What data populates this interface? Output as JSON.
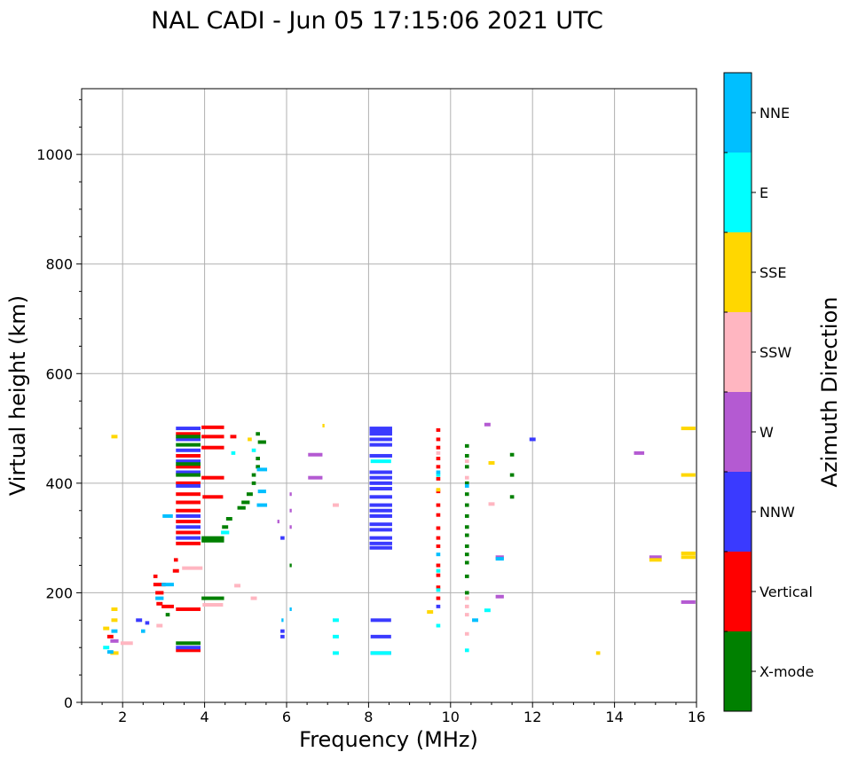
{
  "chart_data": {
    "type": "scatter",
    "title": "NAL CADI - Jun 05 17:15:06 2021 UTC",
    "xlabel": "Frequency (MHz)",
    "ylabel": "Virtual height (km)",
    "xlim": [
      1,
      16
    ],
    "ylim": [
      0,
      1120
    ],
    "xticks": [
      2,
      4,
      6,
      8,
      10,
      12,
      14,
      16
    ],
    "yticks": [
      0,
      200,
      400,
      600,
      800,
      1000
    ],
    "grid": true,
    "colorbar": {
      "label": "Azimuth Direction",
      "position": "right",
      "categories": [
        {
          "name": "X-mode",
          "color": "#008000"
        },
        {
          "name": "Vertical",
          "color": "#ff0000"
        },
        {
          "name": "NNW",
          "color": "#3a3aff"
        },
        {
          "name": "W",
          "color": "#b45ad2"
        },
        {
          "name": "SSW",
          "color": "#ffb6c1"
        },
        {
          "name": "SSE",
          "color": "#ffd700"
        },
        {
          "name": "E",
          "color": "#00ffff"
        },
        {
          "name": "NNE",
          "color": "#00bfff"
        }
      ]
    },
    "series": [
      {
        "name": "Vertical",
        "color": "#ff0000",
        "points": [
          [
            3.6,
            95,
            0.6
          ],
          [
            3.6,
            170,
            0.6
          ],
          [
            3.1,
            175,
            0.3
          ],
          [
            2.9,
            180,
            0.15
          ],
          [
            2.9,
            200,
            0.2
          ],
          [
            2.9,
            215,
            0.3
          ],
          [
            2.8,
            230,
            0.1
          ],
          [
            3.3,
            240,
            0.15
          ],
          [
            3.3,
            260,
            0.1
          ],
          [
            3.6,
            290,
            0.6
          ],
          [
            3.6,
            310,
            0.6
          ],
          [
            3.6,
            330,
            0.6
          ],
          [
            3.6,
            350,
            0.6
          ],
          [
            3.6,
            365,
            0.6
          ],
          [
            3.6,
            380,
            0.6
          ],
          [
            4.2,
            375,
            0.5
          ],
          [
            3.6,
            400,
            0.6
          ],
          [
            4.2,
            410,
            0.55
          ],
          [
            3.6,
            430,
            0.6
          ],
          [
            3.6,
            450,
            0.6
          ],
          [
            4.2,
            465,
            0.55
          ],
          [
            4.2,
            485,
            0.55
          ],
          [
            3.6,
            490,
            0.6
          ],
          [
            4.2,
            502,
            0.55
          ],
          [
            4.7,
            485,
            0.15
          ],
          [
            9.7,
            497,
            0.1
          ],
          [
            9.7,
            480,
            0.1
          ],
          [
            9.7,
            465,
            0.1
          ],
          [
            9.7,
            445,
            0.1
          ],
          [
            9.7,
            430,
            0.1
          ],
          [
            9.7,
            408,
            0.1
          ],
          [
            9.7,
            385,
            0.1
          ],
          [
            9.7,
            360,
            0.1
          ],
          [
            9.7,
            342,
            0.1
          ],
          [
            9.7,
            318,
            0.1
          ],
          [
            9.7,
            300,
            0.1
          ],
          [
            9.7,
            285,
            0.1
          ],
          [
            9.7,
            250,
            0.1
          ],
          [
            9.7,
            232,
            0.1
          ],
          [
            9.7,
            210,
            0.1
          ],
          [
            9.7,
            190,
            0.1
          ],
          [
            1.7,
            120,
            0.15
          ]
        ]
      },
      {
        "name": "NNW",
        "color": "#3a3aff",
        "points": [
          [
            3.6,
            100,
            0.6
          ],
          [
            3.6,
            300,
            0.6
          ],
          [
            3.6,
            320,
            0.6
          ],
          [
            3.6,
            340,
            0.6
          ],
          [
            3.6,
            395,
            0.6
          ],
          [
            3.6,
            420,
            0.6
          ],
          [
            3.6,
            440,
            0.6
          ],
          [
            3.6,
            460,
            0.6
          ],
          [
            3.6,
            480,
            0.6
          ],
          [
            3.6,
            500,
            0.6
          ],
          [
            8.3,
            90,
            0.5
          ],
          [
            8.3,
            120,
            0.5
          ],
          [
            8.3,
            150,
            0.5
          ],
          [
            8.3,
            282,
            0.55
          ],
          [
            8.3,
            290,
            0.55
          ],
          [
            8.3,
            300,
            0.55
          ],
          [
            8.3,
            315,
            0.55
          ],
          [
            8.3,
            325,
            0.55
          ],
          [
            8.3,
            340,
            0.55
          ],
          [
            8.3,
            350,
            0.55
          ],
          [
            8.3,
            360,
            0.55
          ],
          [
            8.3,
            375,
            0.55
          ],
          [
            8.3,
            390,
            0.55
          ],
          [
            8.3,
            400,
            0.55
          ],
          [
            8.3,
            410,
            0.55
          ],
          [
            8.3,
            420,
            0.55
          ],
          [
            8.3,
            450,
            0.55
          ],
          [
            8.3,
            470,
            0.55
          ],
          [
            8.3,
            480,
            0.55
          ],
          [
            8.3,
            490,
            0.55
          ],
          [
            8.3,
            495,
            0.55
          ],
          [
            8.3,
            500,
            0.55
          ],
          [
            5.9,
            120,
            0.1
          ],
          [
            5.9,
            130,
            0.1
          ],
          [
            5.9,
            300,
            0.1
          ],
          [
            12,
            480,
            0.15
          ],
          [
            9.7,
            175,
            0.1
          ],
          [
            2.4,
            150,
            0.15
          ],
          [
            2.6,
            145,
            0.1
          ]
        ]
      },
      {
        "name": "X-mode",
        "color": "#008000",
        "points": [
          [
            3.6,
            108,
            0.6
          ],
          [
            4.2,
            190,
            0.55
          ],
          [
            4.2,
            295,
            0.55
          ],
          [
            4.2,
            300,
            0.55
          ],
          [
            4.5,
            320,
            0.15
          ],
          [
            4.6,
            335,
            0.15
          ],
          [
            4.9,
            355,
            0.2
          ],
          [
            5.0,
            365,
            0.2
          ],
          [
            5.1,
            380,
            0.15
          ],
          [
            5.2,
            400,
            0.1
          ],
          [
            5.2,
            415,
            0.1
          ],
          [
            5.3,
            430,
            0.1
          ],
          [
            5.3,
            445,
            0.1
          ],
          [
            5.4,
            475,
            0.2
          ],
          [
            5.3,
            490,
            0.1
          ],
          [
            3.6,
            415,
            0.6
          ],
          [
            3.6,
            435,
            0.6
          ],
          [
            3.6,
            470,
            0.6
          ],
          [
            3.6,
            485,
            0.6
          ],
          [
            10.4,
            200,
            0.1
          ],
          [
            10.4,
            230,
            0.1
          ],
          [
            10.4,
            255,
            0.1
          ],
          [
            10.4,
            270,
            0.1
          ],
          [
            10.4,
            285,
            0.1
          ],
          [
            10.4,
            305,
            0.1
          ],
          [
            10.4,
            320,
            0.1
          ],
          [
            10.4,
            340,
            0.1
          ],
          [
            10.4,
            360,
            0.1
          ],
          [
            10.4,
            380,
            0.1
          ],
          [
            10.4,
            400,
            0.1
          ],
          [
            10.4,
            430,
            0.1
          ],
          [
            10.4,
            450,
            0.1
          ],
          [
            10.4,
            468,
            0.1
          ],
          [
            11.5,
            375,
            0.1
          ],
          [
            11.5,
            415,
            0.1
          ],
          [
            11.5,
            452,
            0.1
          ],
          [
            6.1,
            250,
            0.05
          ],
          [
            3.1,
            160,
            0.1
          ]
        ]
      },
      {
        "name": "W",
        "color": "#b45ad2",
        "points": [
          [
            6.7,
            410,
            0.35
          ],
          [
            6.7,
            452,
            0.35
          ],
          [
            14.6,
            455,
            0.25
          ],
          [
            15,
            265,
            0.3
          ],
          [
            15.8,
            183,
            0.35
          ],
          [
            10.9,
            507,
            0.15
          ],
          [
            11.2,
            265,
            0.2
          ],
          [
            11.2,
            193,
            0.2
          ],
          [
            1.8,
            112,
            0.2
          ],
          [
            6.1,
            380,
            0.05
          ],
          [
            6.1,
            350,
            0.05
          ],
          [
            6.1,
            320,
            0.05
          ],
          [
            5.8,
            330,
            0.05
          ]
        ]
      },
      {
        "name": "SSW",
        "color": "#ffb6c1",
        "points": [
          [
            4.2,
            178,
            0.5
          ],
          [
            3.7,
            245,
            0.5
          ],
          [
            4.8,
            213,
            0.15
          ],
          [
            5.2,
            190,
            0.15
          ],
          [
            2.9,
            140,
            0.15
          ],
          [
            7.2,
            360,
            0.15
          ],
          [
            11,
            362,
            0.15
          ],
          [
            10.4,
            190,
            0.1
          ],
          [
            10.4,
            175,
            0.1
          ],
          [
            10.4,
            160,
            0.1
          ],
          [
            10.4,
            125,
            0.1
          ],
          [
            10.4,
            440,
            0.1
          ],
          [
            10.4,
            410,
            0.1
          ],
          [
            2.1,
            108,
            0.3
          ],
          [
            9.7,
            455,
            0.1
          ]
        ]
      },
      {
        "name": "SSE",
        "color": "#ffd700",
        "points": [
          [
            15,
            260,
            0.3
          ],
          [
            15.8,
            265,
            0.35
          ],
          [
            15.8,
            272,
            0.35
          ],
          [
            15.8,
            415,
            0.35
          ],
          [
            15.8,
            500,
            0.35
          ],
          [
            13.6,
            90,
            0.1
          ],
          [
            11,
            437,
            0.15
          ],
          [
            9.5,
            165,
            0.15
          ],
          [
            1.8,
            485,
            0.15
          ],
          [
            1.8,
            170,
            0.15
          ],
          [
            1.6,
            135,
            0.15
          ],
          [
            1.8,
            150,
            0.15
          ],
          [
            1.8,
            90,
            0.2
          ],
          [
            9.7,
            388,
            0.1
          ],
          [
            5.1,
            480,
            0.1
          ],
          [
            6.9,
            505,
            0.05
          ]
        ]
      },
      {
        "name": "E",
        "color": "#00ffff",
        "points": [
          [
            8.3,
            90,
            0.5
          ],
          [
            8.3,
            440,
            0.5
          ],
          [
            7.2,
            90,
            0.15
          ],
          [
            7.2,
            120,
            0.15
          ],
          [
            7.2,
            150,
            0.15
          ],
          [
            10.4,
            95,
            0.1
          ],
          [
            10.9,
            168,
            0.15
          ],
          [
            9.7,
            140,
            0.1
          ],
          [
            9.7,
            205,
            0.1
          ],
          [
            9.7,
            240,
            0.1
          ],
          [
            9.7,
            415,
            0.1
          ],
          [
            4.5,
            310,
            0.2
          ],
          [
            4.7,
            455,
            0.1
          ],
          [
            5.2,
            460,
            0.1
          ],
          [
            1.6,
            100,
            0.15
          ]
        ]
      },
      {
        "name": "NNE",
        "color": "#00bfff",
        "points": [
          [
            5.4,
            425,
            0.25
          ],
          [
            5.4,
            385,
            0.2
          ],
          [
            5.4,
            360,
            0.25
          ],
          [
            10.6,
            150,
            0.15
          ],
          [
            11.2,
            262,
            0.2
          ],
          [
            9.7,
            270,
            0.1
          ],
          [
            2.9,
            190,
            0.2
          ],
          [
            3.1,
            215,
            0.3
          ],
          [
            3.1,
            340,
            0.25
          ],
          [
            2.5,
            130,
            0.1
          ],
          [
            1.8,
            130,
            0.15
          ],
          [
            1.7,
            92,
            0.15
          ],
          [
            6.1,
            170,
            0.05
          ],
          [
            5.9,
            150,
            0.05
          ],
          [
            10.4,
            395,
            0.1
          ],
          [
            9.7,
            420,
            0.1
          ]
        ]
      }
    ]
  }
}
